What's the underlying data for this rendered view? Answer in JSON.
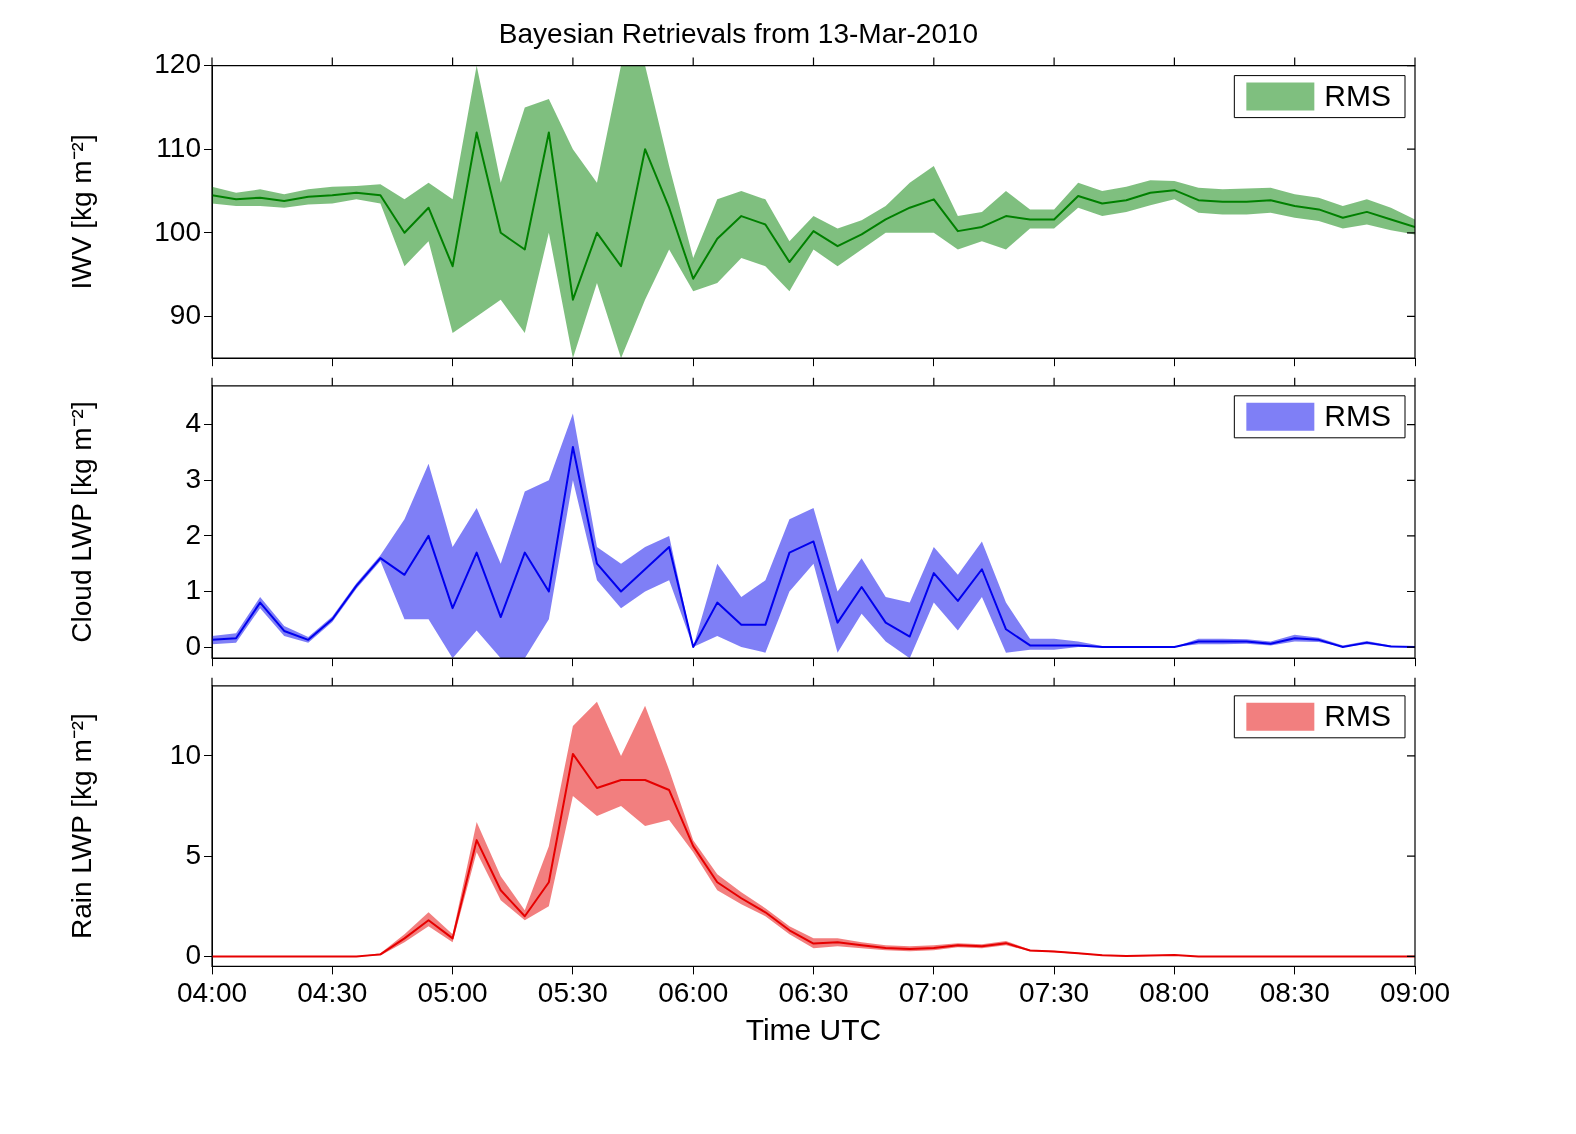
{
  "chart_data": [
    {
      "type": "line",
      "title": "Bayesian Retrievals from 13-Mar-2010",
      "ylabel": "IWV [kg m⁻²]",
      "legend": "top right",
      "grid": false,
      "marker": "none",
      "tick_labels": "y",
      "x": [
        4,
        4.1,
        4.2,
        4.3,
        4.4,
        4.5,
        4.6,
        4.7,
        4.8,
        4.9,
        5,
        5.1,
        5.2,
        5.3,
        5.4,
        5.5,
        5.6,
        5.7,
        5.8,
        5.9,
        6,
        6.1,
        6.2,
        6.3,
        6.4,
        6.5,
        6.6,
        6.7,
        6.8,
        6.9,
        7,
        7.1,
        7.2,
        7.3,
        7.4,
        7.5,
        7.6,
        7.7,
        7.8,
        7.9,
        8,
        8.1,
        8.2,
        8.3,
        8.4,
        8.5,
        8.6,
        8.7,
        8.8,
        8.9,
        9
      ],
      "xlim": [
        4,
        9
      ],
      "xticks": [
        {
          "value": 4,
          "label": null
        },
        {
          "value": 4.5,
          "label": null
        },
        {
          "value": 5,
          "label": null
        },
        {
          "value": 5.5,
          "label": null
        },
        {
          "value": 6,
          "label": null
        },
        {
          "value": 6.5,
          "label": null
        },
        {
          "value": 7,
          "label": null
        },
        {
          "value": 7.5,
          "label": null
        },
        {
          "value": 8,
          "label": null
        },
        {
          "value": 8.5,
          "label": null
        },
        {
          "value": 9,
          "label": null
        }
      ],
      "ylim": [
        85,
        120
      ],
      "yticks": [
        90,
        100,
        110,
        120
      ],
      "series": [
        {
          "name": "RMS",
          "color": "#008000",
          "values": [
            104.5,
            104,
            104.2,
            103.8,
            104.3,
            104.5,
            104.8,
            104.5,
            100,
            103,
            96,
            112,
            100,
            98,
            112,
            92,
            100,
            96,
            110,
            103,
            94.5,
            99.3,
            102,
            101,
            96.5,
            100.2,
            98.4,
            99.8,
            101.6,
            103,
            104,
            100.2,
            100.7,
            102,
            101.6,
            101.6,
            104.4,
            103.5,
            103.9,
            104.8,
            105.1,
            103.9,
            103.7,
            103.7,
            103.9,
            103.2,
            102.8,
            101.8,
            102.5,
            101.6,
            100.7
          ],
          "lower": [
            103.5,
            103.2,
            103.2,
            103,
            103.4,
            103.5,
            104,
            103.5,
            96,
            99,
            88,
            90,
            92,
            88,
            100,
            85,
            94,
            85,
            92,
            98,
            93,
            94,
            97,
            96,
            93,
            98,
            96,
            98,
            100,
            100,
            100,
            98,
            99,
            98,
            100.5,
            100.5,
            103,
            102,
            102.5,
            103.3,
            104,
            102.4,
            102.2,
            102.2,
            102.4,
            101.8,
            101.4,
            100.5,
            101,
            100.3,
            99.8
          ],
          "upper": [
            105.5,
            104.8,
            105.2,
            104.6,
            105.2,
            105.5,
            105.6,
            105.8,
            104,
            106,
            104,
            120,
            106,
            115,
            116,
            110,
            106,
            120,
            120,
            108,
            97,
            104,
            105,
            104,
            99,
            102,
            100.5,
            101.5,
            103.2,
            106,
            108,
            102,
            102.5,
            105,
            102.8,
            102.8,
            106,
            105,
            105.5,
            106.3,
            106.2,
            105.4,
            105.2,
            105.3,
            105.4,
            104.6,
            104.2,
            103.2,
            104,
            103,
            101.6
          ]
        }
      ]
    },
    {
      "type": "line",
      "ylabel": "Cloud LWP [kg m⁻²]",
      "legend": "top right",
      "grid": false,
      "marker": "none",
      "tick_labels": "y",
      "x": [
        4,
        4.1,
        4.2,
        4.3,
        4.4,
        4.5,
        4.6,
        4.7,
        4.8,
        4.9,
        5,
        5.1,
        5.2,
        5.3,
        5.4,
        5.5,
        5.6,
        5.7,
        5.8,
        5.9,
        6,
        6.1,
        6.2,
        6.3,
        6.4,
        6.5,
        6.6,
        6.7,
        6.8,
        6.9,
        7,
        7.1,
        7.2,
        7.3,
        7.4,
        7.5,
        7.6,
        7.7,
        7.8,
        7.9,
        8,
        8.1,
        8.2,
        8.3,
        8.4,
        8.5,
        8.6,
        8.7,
        8.8,
        8.9,
        9
      ],
      "xlim": [
        4,
        9
      ],
      "xticks": [
        {
          "value": 4,
          "label": null
        },
        {
          "value": 4.5,
          "label": null
        },
        {
          "value": 5,
          "label": null
        },
        {
          "value": 5.5,
          "label": null
        },
        {
          "value": 6,
          "label": null
        },
        {
          "value": 6.5,
          "label": null
        },
        {
          "value": 7,
          "label": null
        },
        {
          "value": 7.5,
          "label": null
        },
        {
          "value": 8,
          "label": null
        },
        {
          "value": 8.5,
          "label": null
        },
        {
          "value": 9,
          "label": null
        }
      ],
      "ylim": [
        -0.2,
        4.7
      ],
      "yticks": [
        0,
        1,
        2,
        3,
        4
      ],
      "series": [
        {
          "name": "RMS",
          "color": "#0000ee",
          "values": [
            0.13,
            0.16,
            0.8,
            0.29,
            0.13,
            0.5,
            1.1,
            1.6,
            1.3,
            2,
            0.7,
            1.7,
            0.54,
            1.7,
            1,
            3.6,
            1.5,
            1,
            1.4,
            1.8,
            0,
            0.8,
            0.4,
            0.4,
            1.7,
            1.9,
            0.44,
            1.08,
            0.44,
            0.19,
            1.33,
            0.83,
            1.4,
            0.32,
            0.03,
            0.03,
            0.03,
            0,
            0,
            0,
            0,
            0.1,
            0.1,
            0.1,
            0.06,
            0.16,
            0.13,
            0,
            0.08,
            0.01,
            0
          ],
          "lower": [
            0.05,
            0.08,
            0.7,
            0.2,
            0.08,
            0.45,
            1.05,
            1.55,
            0.5,
            0.5,
            -0.2,
            0.3,
            -0.2,
            -0.2,
            0.5,
            3,
            1.2,
            0.7,
            1,
            1.2,
            0,
            0.2,
            0,
            -0.1,
            1,
            1.5,
            -0.1,
            0.6,
            0.1,
            -0.2,
            0.8,
            0.3,
            0.9,
            -0.1,
            -0.05,
            -0.05,
            0,
            0,
            0,
            0,
            0,
            0.05,
            0.05,
            0.06,
            0.03,
            0.1,
            0.09,
            0,
            0.05,
            0,
            0
          ],
          "upper": [
            0.2,
            0.25,
            0.9,
            0.38,
            0.18,
            0.55,
            1.15,
            1.65,
            2.3,
            3.3,
            1.8,
            2.5,
            1.5,
            2.8,
            3,
            4.2,
            1.8,
            1.5,
            1.8,
            2,
            0,
            1.5,
            0.9,
            1.2,
            2.3,
            2.5,
            1,
            1.6,
            0.9,
            0.8,
            1.8,
            1.3,
            1.9,
            0.8,
            0.15,
            0.15,
            0.1,
            0.02,
            0,
            0,
            0,
            0.15,
            0.15,
            0.14,
            0.1,
            0.22,
            0.17,
            0.03,
            0.11,
            0.03,
            0.01
          ]
        }
      ]
    },
    {
      "type": "line",
      "xlabel": "Time UTC",
      "ylabel": "Rain LWP [kg m⁻²]",
      "legend": "top right",
      "grid": false,
      "marker": "none",
      "x": [
        4,
        4.1,
        4.2,
        4.3,
        4.4,
        4.5,
        4.6,
        4.7,
        4.8,
        4.9,
        5,
        5.1,
        5.2,
        5.3,
        5.4,
        5.5,
        5.6,
        5.7,
        5.8,
        5.9,
        6,
        6.1,
        6.2,
        6.3,
        6.4,
        6.5,
        6.6,
        6.7,
        6.8,
        6.9,
        7,
        7.1,
        7.2,
        7.3,
        7.4,
        7.5,
        7.6,
        7.7,
        7.8,
        7.9,
        8,
        8.1,
        8.2,
        8.3,
        8.4,
        8.5,
        8.6,
        8.7,
        8.8,
        8.9,
        9
      ],
      "xlim": [
        4,
        9
      ],
      "xticks": [
        {
          "value": 4,
          "label": "04:00"
        },
        {
          "value": 4.5,
          "label": "04:30"
        },
        {
          "value": 5,
          "label": "05:00"
        },
        {
          "value": 5.5,
          "label": "05:30"
        },
        {
          "value": 6,
          "label": "06:00"
        },
        {
          "value": 6.5,
          "label": "06:30"
        },
        {
          "value": 7,
          "label": "07:00"
        },
        {
          "value": 7.5,
          "label": "07:30"
        },
        {
          "value": 8,
          "label": "08:00"
        },
        {
          "value": 8.5,
          "label": "08:30"
        },
        {
          "value": 9,
          "label": "09:00"
        }
      ],
      "ylim": [
        -0.5,
        13.5
      ],
      "yticks": [
        0,
        5,
        10
      ],
      "series": [
        {
          "name": "RMS",
          "color": "#e60000",
          "values": [
            0,
            0,
            0,
            0,
            0,
            0,
            0,
            0.1,
            0.9,
            1.8,
            0.9,
            5.8,
            3.3,
            2,
            3.7,
            10.1,
            8.4,
            8.8,
            8.8,
            8.3,
            5.5,
            3.7,
            2.9,
            2.2,
            1.3,
            0.64,
            0.7,
            0.55,
            0.42,
            0.37,
            0.42,
            0.55,
            0.5,
            0.66,
            0.29,
            0.24,
            0.15,
            0.06,
            0.02,
            0.04,
            0.07,
            0,
            0,
            0,
            0,
            0,
            0,
            0,
            0,
            0,
            0
          ],
          "lower": [
            0,
            0,
            0,
            0,
            0,
            0,
            0,
            0.05,
            0.7,
            1.5,
            0.7,
            5.2,
            2.8,
            1.8,
            2.5,
            8,
            7,
            7.5,
            6.5,
            6.8,
            5.2,
            3.3,
            2.6,
            2,
            1.1,
            0.4,
            0.5,
            0.4,
            0.3,
            0.25,
            0.3,
            0.45,
            0.4,
            0.55,
            0.25,
            0.2,
            0.12,
            0.04,
            0,
            0.02,
            0.05,
            0,
            0,
            0,
            0,
            0,
            0,
            0,
            0,
            0,
            0
          ],
          "upper": [
            0,
            0,
            0,
            0,
            0,
            0,
            0,
            0.15,
            1.1,
            2.2,
            1.1,
            6.7,
            4,
            2.3,
            5.5,
            11.5,
            12.7,
            10,
            12.5,
            9.3,
            5.8,
            4.1,
            3.2,
            2.4,
            1.5,
            0.9,
            0.9,
            0.7,
            0.55,
            0.5,
            0.55,
            0.65,
            0.6,
            0.77,
            0.33,
            0.28,
            0.18,
            0.08,
            0.04,
            0.06,
            0.09,
            0,
            0,
            0,
            0,
            0,
            0,
            0,
            0,
            0,
            0
          ]
        }
      ]
    }
  ]
}
